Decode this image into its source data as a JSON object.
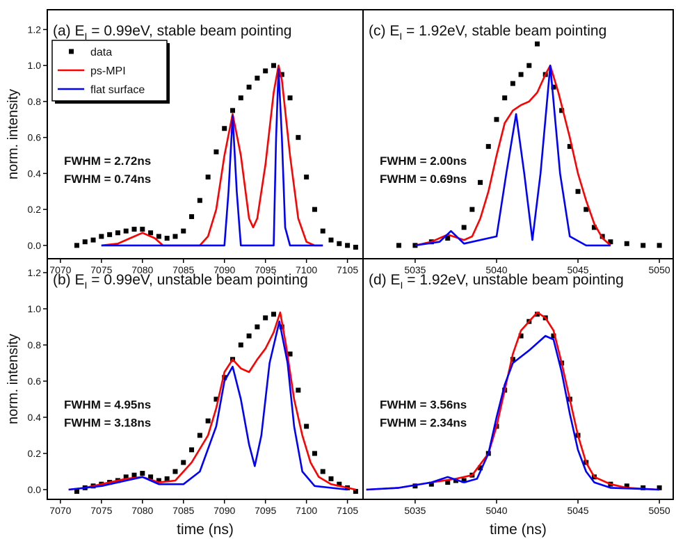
{
  "chart_data": [
    {
      "type": "line",
      "title": [
        "(a) E",
        "I",
        " = 0.99eV, stable beam pointing"
      ],
      "ylabel": "norm. intensity",
      "legend": "upper left",
      "xlim": [
        7068.4,
        7106.9
      ],
      "xticks": [
        7070,
        7075,
        7080,
        7085,
        7090,
        7095,
        7100,
        7105
      ],
      "ylim": [
        -0.074,
        1.31
      ],
      "yticks": [
        {
          "value": 0,
          "label": "0.0"
        },
        0.2,
        0.4,
        0.6,
        0.8,
        {
          "value": 1,
          "label": "1.0"
        },
        1.2
      ],
      "annotations": [
        {
          "text": "FWHM = 2.72ns",
          "color": "#ff0000"
        },
        {
          "text": "FWHM = 0.74ns",
          "color": "#0000ff"
        }
      ],
      "series": [
        {
          "name": "data",
          "style": "markers",
          "color": "#000000",
          "x": [
            7072,
            7073,
            7074,
            7075,
            7076,
            7077,
            7078,
            7079,
            7080,
            7081,
            7082,
            7083,
            7084,
            7085,
            7086,
            7087,
            7088,
            7089,
            7090,
            7091,
            7092,
            7093,
            7094,
            7095,
            7096,
            7097,
            7098,
            7099,
            7100,
            7101,
            7102,
            7103,
            7104,
            7105,
            7106
          ],
          "values": [
            0.0,
            0.02,
            0.03,
            0.05,
            0.06,
            0.07,
            0.08,
            0.09,
            0.09,
            0.07,
            0.05,
            0.04,
            0.05,
            0.08,
            0.16,
            0.25,
            0.38,
            0.52,
            0.65,
            0.75,
            0.82,
            0.88,
            0.93,
            0.97,
            1.0,
            0.95,
            0.82,
            0.6,
            0.38,
            0.2,
            0.08,
            0.03,
            0.01,
            0.0,
            -0.01
          ]
        },
        {
          "name": "ps-MPI",
          "style": "line",
          "color": "#ff0000",
          "x": [
            7075,
            7077,
            7078.5,
            7080,
            7081.5,
            7082.5,
            7087,
            7088,
            7089,
            7090,
            7091,
            7092,
            7093,
            7093.5,
            7094,
            7095,
            7096,
            7096.6,
            7097,
            7098,
            7099,
            7100,
            7101,
            7102
          ],
          "values": [
            0,
            0.01,
            0.04,
            0.07,
            0.04,
            0,
            0,
            0.05,
            0.2,
            0.5,
            0.73,
            0.5,
            0.15,
            0.1,
            0.15,
            0.45,
            0.85,
            1.0,
            0.92,
            0.5,
            0.15,
            0.02,
            0,
            0
          ]
        },
        {
          "name": "flat surface",
          "style": "line",
          "color": "#0000ff",
          "x": [
            7075,
            7090,
            7090.5,
            7091,
            7091.5,
            7092,
            7096,
            7096.3,
            7096.6,
            7097,
            7097.4,
            7098,
            7102
          ],
          "values": [
            0,
            0,
            0.3,
            0.72,
            0.3,
            0,
            0,
            0.6,
            0.98,
            0.6,
            0.1,
            0,
            0
          ]
        }
      ]
    },
    {
      "type": "line",
      "title": [
        "(b) E",
        "I",
        " = 0.99eV, unstable beam pointing"
      ],
      "ylabel": "norm. intensity",
      "xlabel": "time (ns)",
      "xlim": [
        7068.4,
        7106.9
      ],
      "xticks": [
        7070,
        7075,
        7080,
        7085,
        7090,
        7095,
        7100,
        7105
      ],
      "ylim": [
        -0.054,
        1.277
      ],
      "yticks": [
        {
          "value": 0,
          "label": "0.0"
        },
        0.2,
        0.4,
        0.6,
        0.8,
        {
          "value": 1,
          "label": "1.0"
        },
        1.2
      ],
      "annotations": [
        {
          "text": "FWHM = 4.95ns",
          "color": "#ff0000"
        },
        {
          "text": "FWHM = 3.18ns",
          "color": "#0000ff"
        }
      ],
      "series": [
        {
          "name": "data",
          "style": "markers",
          "color": "#000000",
          "x": [
            7072,
            7073,
            7074,
            7075,
            7076,
            7077,
            7078,
            7079,
            7080,
            7081,
            7082,
            7083,
            7084,
            7085,
            7086,
            7087,
            7088,
            7089,
            7090,
            7091,
            7092,
            7093,
            7094,
            7095,
            7096,
            7097,
            7098,
            7099,
            7100,
            7101,
            7102,
            7103,
            7104,
            7105,
            7106
          ],
          "values": [
            -0.01,
            0.01,
            0.02,
            0.03,
            0.04,
            0.05,
            0.07,
            0.08,
            0.09,
            0.07,
            0.05,
            0.06,
            0.1,
            0.15,
            0.22,
            0.3,
            0.38,
            0.5,
            0.62,
            0.72,
            0.8,
            0.85,
            0.9,
            0.95,
            0.97,
            0.9,
            0.75,
            0.55,
            0.35,
            0.2,
            0.1,
            0.06,
            0.03,
            0.01,
            -0.01
          ]
        },
        {
          "name": "ps-MPI",
          "style": "line",
          "color": "#ff0000",
          "x": [
            7071,
            7073,
            7075,
            7078,
            7080,
            7082,
            7084,
            7086,
            7088,
            7089,
            7090,
            7091,
            7092,
            7093,
            7094,
            7095,
            7096,
            7096.8,
            7097.5,
            7098.5,
            7099.5,
            7100.5,
            7101.5,
            7103,
            7105,
            7106
          ],
          "values": [
            0,
            0.01,
            0.03,
            0.06,
            0.07,
            0.04,
            0.05,
            0.15,
            0.3,
            0.45,
            0.65,
            0.72,
            0.67,
            0.65,
            0.72,
            0.78,
            0.87,
            0.98,
            0.8,
            0.5,
            0.3,
            0.15,
            0.07,
            0.03,
            0.01,
            0
          ]
        },
        {
          "name": "flat surface",
          "style": "line",
          "color": "#0000ff",
          "x": [
            7071,
            7075,
            7078,
            7080,
            7082,
            7085,
            7087,
            7089,
            7090,
            7091,
            7092,
            7093,
            7093.7,
            7094.5,
            7095.5,
            7096.7,
            7097.7,
            7098.5,
            7099.5,
            7101,
            7105
          ],
          "values": [
            0,
            0.02,
            0.05,
            0.07,
            0.03,
            0.03,
            0.1,
            0.35,
            0.6,
            0.68,
            0.5,
            0.25,
            0.13,
            0.3,
            0.7,
            0.93,
            0.7,
            0.35,
            0.1,
            0.02,
            0
          ]
        }
      ]
    },
    {
      "type": "line",
      "title": [
        "(c) E",
        "I",
        " = 1.92eV, stable beam pointing"
      ],
      "xlim": [
        5031.8,
        5050.85
      ],
      "xticks": [
        5035,
        5040,
        5045,
        5050
      ],
      "ylim": [
        -0.074,
        1.31
      ],
      "annotations": [
        {
          "text": "FWHM = 2.00ns",
          "color": "#ff0000"
        },
        {
          "text": "FWHM = 0.69ns",
          "color": "#0000ff"
        }
      ],
      "series": [
        {
          "name": "data",
          "style": "markers",
          "color": "#000000",
          "x": [
            5034,
            5035,
            5036,
            5037,
            5038,
            5038.5,
            5039,
            5039.5,
            5040,
            5040.5,
            5041,
            5041.5,
            5042,
            5042.5,
            5043,
            5043.5,
            5044,
            5044.5,
            5045,
            5045.5,
            5046,
            5046.5,
            5047,
            5048,
            5049,
            5050,
            5051
          ],
          "values": [
            0.0,
            0.0,
            0.02,
            0.04,
            0.1,
            0.2,
            0.35,
            0.55,
            0.7,
            0.82,
            0.9,
            0.95,
            1.0,
            1.12,
            0.95,
            0.88,
            0.75,
            0.55,
            0.3,
            0.2,
            0.1,
            0.05,
            0.02,
            0.01,
            0.0,
            0.0,
            0.0
          ]
        },
        {
          "name": "ps-MPI",
          "style": "line",
          "color": "#ff0000",
          "x": [
            5035,
            5036,
            5037,
            5038,
            5038.5,
            5039,
            5039.5,
            5040,
            5040.5,
            5041,
            5041.5,
            5042,
            5042.5,
            5043,
            5043.3,
            5043.8,
            5044.5,
            5045,
            5045.5,
            5046,
            5046.5,
            5047
          ],
          "values": [
            0,
            0.02,
            0.06,
            0.03,
            0.05,
            0.15,
            0.3,
            0.5,
            0.68,
            0.75,
            0.78,
            0.8,
            0.85,
            0.95,
            1.0,
            0.85,
            0.6,
            0.4,
            0.25,
            0.12,
            0.04,
            0.0
          ]
        },
        {
          "name": "flat surface",
          "style": "line",
          "color": "#0000ff",
          "x": [
            5035,
            5036.5,
            5037.2,
            5038,
            5040,
            5040.6,
            5041.2,
            5041.7,
            5042.2,
            5042.7,
            5043.3,
            5043.9,
            5044.5,
            5045.5,
            5047
          ],
          "values": [
            0,
            0.02,
            0.08,
            0.01,
            0.05,
            0.4,
            0.73,
            0.4,
            0.03,
            0.4,
            1.0,
            0.4,
            0.05,
            0.0,
            0
          ]
        }
      ]
    },
    {
      "type": "line",
      "title": [
        "(d) E",
        "I",
        " = 1.92eV, unstable beam pointing"
      ],
      "xlabel": "time (ns)",
      "xlim": [
        5031.8,
        5050.85
      ],
      "xticks": [
        5035,
        5040,
        5045,
        5050
      ],
      "ylim": [
        -0.054,
        1.277
      ],
      "annotations": [
        {
          "text": "FWHM = 3.56ns",
          "color": "#ff0000"
        },
        {
          "text": "FWHM = 2.34ns",
          "color": "#0000ff"
        }
      ],
      "series": [
        {
          "name": "data",
          "style": "markers",
          "color": "#000000",
          "x": [
            5035,
            5036,
            5037,
            5037.5,
            5038,
            5038.5,
            5039,
            5039.5,
            5040,
            5040.5,
            5041,
            5041.5,
            5042,
            5042.5,
            5043,
            5043.5,
            5044,
            5044.5,
            5045,
            5045.5,
            5046,
            5047,
            5048,
            5049,
            5050,
            5051
          ],
          "values": [
            0.02,
            0.03,
            0.04,
            0.05,
            0.05,
            0.08,
            0.12,
            0.2,
            0.35,
            0.55,
            0.72,
            0.85,
            0.93,
            0.97,
            0.95,
            0.85,
            0.7,
            0.5,
            0.3,
            0.15,
            0.07,
            0.03,
            0.02,
            0.01,
            0.01,
            0.0
          ]
        },
        {
          "name": "ps-MPI",
          "style": "line",
          "color": "#ff0000",
          "x": [
            5032,
            5034,
            5036,
            5037.5,
            5038.5,
            5039.5,
            5040,
            5040.5,
            5041,
            5041.5,
            5042,
            5042.5,
            5043,
            5043.5,
            5044,
            5044.5,
            5045,
            5045.5,
            5046,
            5047,
            5048,
            5050
          ],
          "values": [
            0,
            0.01,
            0.04,
            0.06,
            0.08,
            0.2,
            0.35,
            0.55,
            0.75,
            0.88,
            0.93,
            0.98,
            0.95,
            0.88,
            0.7,
            0.5,
            0.3,
            0.15,
            0.07,
            0.03,
            0.01,
            0.0
          ]
        },
        {
          "name": "flat surface",
          "style": "line",
          "color": "#0000ff",
          "x": [
            5032,
            5034,
            5036,
            5037,
            5038,
            5038.8,
            5039.5,
            5040,
            5040.5,
            5041,
            5042,
            5043,
            5043.5,
            5044,
            5044.5,
            5045,
            5045.5,
            5046,
            5047,
            5050
          ],
          "values": [
            0,
            0.01,
            0.04,
            0.07,
            0.04,
            0.06,
            0.2,
            0.4,
            0.58,
            0.7,
            0.77,
            0.85,
            0.83,
            0.65,
            0.42,
            0.22,
            0.1,
            0.04,
            0.01,
            0
          ]
        }
      ]
    }
  ]
}
